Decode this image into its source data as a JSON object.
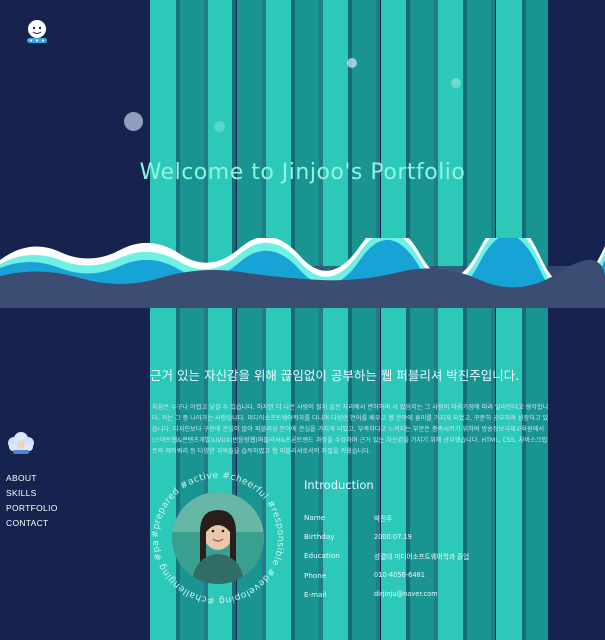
{
  "hero": {
    "title": "Welcome to Jinjoo's Portfolio"
  },
  "about": {
    "heading": "근거 있는 자신감을 위해 끊임없이 공부하는 웹 퍼블리셔 박진주입니다.",
    "body": "처음은 누구나 어렵고 낯설 수 있습니다. 하지만 더 나은 사람이 될지 같은 자리에서 변하하며 서 있음지는 그 사람의 마음가짐에 따라 달라진다고 생각합니다. 저는 그 중 나아가는 사람입니다. 미디어소프트웨어학과를 다니며 다양한 언어를 배우고 웹 분야에 흥미를 가지게 되었고, 꾸준히 공부하며 성장하고 있습니다. 디자인보다 구현에 관심이 많아 퍼블리싱 분야에 관심을 가지게 되었고, 부족하다고 느껴지는 부분은 충족시키기 위하여 방송정보국제교육원에서 (스마트웹&콘텐츠개발)UI/UX(반응형웹)퍼블리셔&프론트엔드 과정을 수강하며 근거 있는 자신감을 가지기 위해 공부했습니다. HTML, CSS, 자바스크립트와 제이쿼리 등 다양한 과목들을 습득하였고 웹 퍼블리셔로서의 자질을 키웠습니다."
  },
  "nav": {
    "items": [
      "ABOUT",
      "SKILLS",
      "PORTFOLIO",
      "CONTACT"
    ]
  },
  "ring": {
    "text": "#prepared #active #cheerful #responsible #developing #challenging #passionate"
  },
  "intro": {
    "title": "Introduction",
    "rows": [
      {
        "label": "Name",
        "value": "박진주"
      },
      {
        "label": "Birthday",
        "value": "2000.07.19"
      },
      {
        "label": "Education",
        "value": "성결대 미디어소프트웨어학과 졸업"
      },
      {
        "label": "Phone",
        "value": "010-4056-6481"
      },
      {
        "label": "E-mail",
        "value": "dirjinju@naver.com"
      }
    ]
  },
  "icons": {
    "logo": "smiling-cloud-icon",
    "side_avatar": "cloud-avatar-icon"
  },
  "colors": {
    "background": "#16234f",
    "stripe": "#2ed3be",
    "stripe_alt": "#1aa89c",
    "hero_text": "#8ff5e2"
  }
}
